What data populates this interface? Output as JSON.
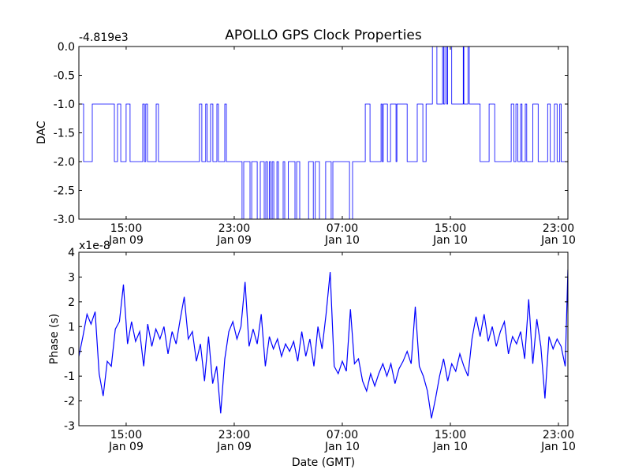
{
  "chart_data": [
    {
      "type": "line",
      "title": "APOLLO GPS Clock Properties",
      "ylabel": "DAC",
      "xlabel": "",
      "offset_label": "-4.819e3",
      "ylim": [
        -3.0,
        0.0
      ],
      "xlim_hours": [
        11.5,
        47.7
      ],
      "yticks": [
        0.0,
        -0.5,
        -1.0,
        -1.5,
        -2.0,
        -2.5,
        -3.0
      ],
      "ytick_labels": [
        "0.0",
        "-0.5",
        "-1.0",
        "-1.5",
        "-2.0",
        "-2.5",
        "-3.0"
      ],
      "xticks_hours": [
        15,
        23,
        31,
        39,
        47
      ],
      "xtick_labels": [
        [
          "15:00",
          "Jan 09"
        ],
        [
          "23:00",
          "Jan 09"
        ],
        [
          "07:00",
          "Jan 10"
        ],
        [
          "15:00",
          "Jan 10"
        ],
        [
          "23:00",
          "Jan 10"
        ]
      ],
      "color": "#0000ff",
      "step_series": [
        [
          11.5,
          -1
        ],
        [
          11.85,
          -2
        ],
        [
          12.49,
          -1
        ],
        [
          14.13,
          -2
        ],
        [
          14.36,
          -1
        ],
        [
          14.6,
          -2
        ],
        [
          15.0,
          -1
        ],
        [
          15.29,
          -2
        ],
        [
          16.23,
          -1
        ],
        [
          16.35,
          -2
        ],
        [
          16.45,
          -1
        ],
        [
          16.58,
          -2
        ],
        [
          17.22,
          -1
        ],
        [
          17.39,
          -2
        ],
        [
          20.43,
          -1
        ],
        [
          20.6,
          -2
        ],
        [
          20.89,
          -1
        ],
        [
          21.0,
          -2
        ],
        [
          21.25,
          -1
        ],
        [
          21.42,
          -2
        ],
        [
          21.72,
          -1
        ],
        [
          21.83,
          -2
        ],
        [
          22.3,
          -1
        ],
        [
          22.42,
          -2
        ],
        [
          23.58,
          -3
        ],
        [
          23.7,
          -2
        ],
        [
          24.17,
          -3
        ],
        [
          24.29,
          -2
        ],
        [
          24.7,
          -3
        ],
        [
          24.93,
          -2
        ],
        [
          25.22,
          -3
        ],
        [
          25.34,
          -2
        ],
        [
          25.46,
          -3
        ],
        [
          25.6,
          -2
        ],
        [
          25.7,
          -3
        ],
        [
          25.81,
          -2
        ],
        [
          25.93,
          -3
        ],
        [
          26.16,
          -2
        ],
        [
          26.27,
          -3
        ],
        [
          26.62,
          -2
        ],
        [
          26.74,
          -3
        ],
        [
          27.0,
          -2
        ],
        [
          27.5,
          -3
        ],
        [
          27.62,
          -2
        ],
        [
          27.85,
          -3
        ],
        [
          28.5,
          -2
        ],
        [
          28.85,
          -3
        ],
        [
          29.0,
          -2
        ],
        [
          29.31,
          -3
        ],
        [
          29.77,
          -2
        ],
        [
          30.18,
          -3
        ],
        [
          30.3,
          -2
        ],
        [
          31.53,
          -3
        ],
        [
          31.76,
          -2
        ],
        [
          32.7,
          -1
        ],
        [
          33.05,
          -2
        ],
        [
          33.87,
          -1
        ],
        [
          33.95,
          -2
        ],
        [
          34.04,
          -1
        ],
        [
          34.34,
          -2
        ],
        [
          34.57,
          -1
        ],
        [
          34.98,
          -2
        ],
        [
          35.04,
          -1
        ],
        [
          35.8,
          -2
        ],
        [
          36.55,
          -1
        ],
        [
          36.96,
          -2
        ],
        [
          37.2,
          -1
        ],
        [
          37.67,
          0
        ],
        [
          38.0,
          -1
        ],
        [
          38.42,
          0
        ],
        [
          38.5,
          -1
        ],
        [
          38.6,
          0
        ],
        [
          38.73,
          -1
        ],
        [
          38.8,
          0
        ],
        [
          39.1,
          -1
        ],
        [
          39.95,
          0
        ],
        [
          40.0,
          -1
        ],
        [
          40.3,
          0
        ],
        [
          40.4,
          -1
        ],
        [
          41.2,
          -2
        ],
        [
          41.87,
          -1
        ],
        [
          42.28,
          -2
        ],
        [
          43.5,
          -1
        ],
        [
          43.7,
          -2
        ],
        [
          43.85,
          -1
        ],
        [
          44.0,
          -2
        ],
        [
          44.2,
          -1
        ],
        [
          44.3,
          -2
        ],
        [
          44.55,
          -1
        ],
        [
          44.65,
          -2
        ],
        [
          45.1,
          -1
        ],
        [
          45.5,
          -2
        ],
        [
          46.2,
          -1
        ],
        [
          46.4,
          -2
        ],
        [
          46.7,
          -1
        ],
        [
          46.9,
          -2
        ],
        [
          47.1,
          -1
        ],
        [
          47.2,
          -2
        ]
      ],
      "step_end_hours": 47.7
    },
    {
      "type": "line",
      "title": "",
      "ylabel": "Phase (s)",
      "xlabel": "Date (GMT)",
      "offset_label": "x1e-8",
      "ylim": [
        -3,
        4
      ],
      "xlim_hours": [
        11.5,
        47.7
      ],
      "yticks": [
        4,
        3,
        2,
        1,
        0,
        -1,
        -2,
        -3
      ],
      "ytick_labels": [
        "4",
        "3",
        "2",
        "1",
        "0",
        "-1",
        "-2",
        "-3"
      ],
      "xticks_hours": [
        15,
        23,
        31,
        39,
        47
      ],
      "xtick_labels": [
        [
          "15:00",
          "Jan 09"
        ],
        [
          "23:00",
          "Jan 09"
        ],
        [
          "07:00",
          "Jan 10"
        ],
        [
          "15:00",
          "Jan 10"
        ],
        [
          "23:00",
          "Jan 10"
        ]
      ],
      "color": "#0000ff",
      "x_start_hours": 11.5,
      "x_step_hours": 0.3,
      "values": [
        -0.2,
        0.6,
        1.5,
        1.1,
        1.6,
        -0.9,
        -1.8,
        -0.4,
        -0.6,
        0.9,
        1.2,
        2.7,
        0.3,
        1.2,
        0.4,
        0.8,
        -0.6,
        1.1,
        0.2,
        0.9,
        0.5,
        1.0,
        -0.1,
        0.8,
        0.3,
        1.3,
        2.2,
        0.5,
        0.8,
        -0.4,
        0.3,
        -1.2,
        0.6,
        -1.3,
        -0.6,
        -2.5,
        -0.3,
        0.8,
        1.2,
        0.5,
        1.0,
        2.8,
        0.2,
        0.9,
        0.3,
        1.5,
        -0.6,
        0.6,
        0.1,
        0.5,
        -0.2,
        0.3,
        0.0,
        0.4,
        -0.4,
        0.8,
        -0.2,
        0.5,
        -0.6,
        1.0,
        0.1,
        1.5,
        3.2,
        -0.6,
        -0.9,
        -0.4,
        -0.8,
        1.7,
        -0.5,
        -0.3,
        -1.2,
        -1.6,
        -0.9,
        -1.4,
        -0.9,
        -0.5,
        -1.0,
        -0.5,
        -1.3,
        -0.7,
        -0.4,
        0.0,
        -0.5,
        1.8,
        -0.6,
        -1.0,
        -1.6,
        -2.7,
        -1.9,
        -1.0,
        -0.3,
        -1.2,
        -0.5,
        -0.8,
        -0.1,
        -0.6,
        -1.0,
        0.5,
        1.4,
        0.6,
        1.5,
        0.4,
        1.0,
        0.2,
        0.8,
        1.2,
        -0.1,
        0.6,
        0.3,
        0.8,
        -0.3,
        2.1,
        -0.5,
        1.3,
        0.2,
        -1.9,
        0.6,
        0.1,
        0.5,
        0.2,
        -0.6
      ],
      "final_point": [
        47.7,
        3.3
      ]
    }
  ]
}
